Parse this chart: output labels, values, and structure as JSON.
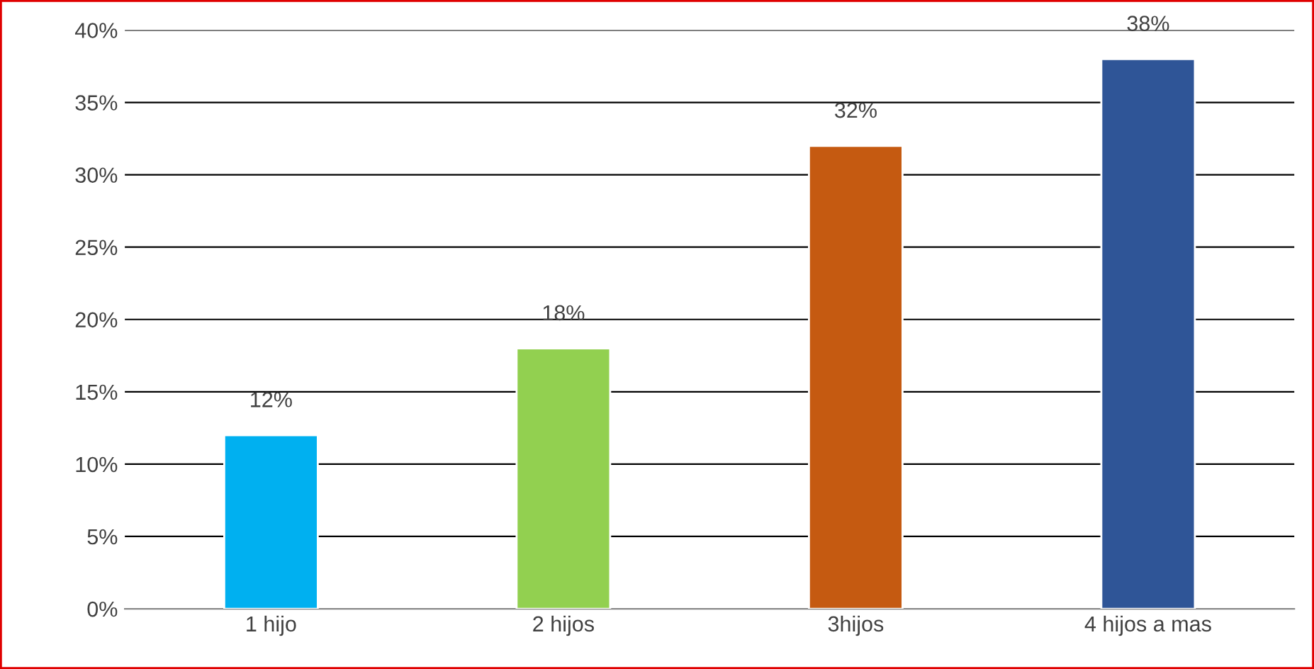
{
  "chart_data": {
    "type": "bar",
    "categories": [
      "1 hijo",
      "2 hijos",
      "3hijos",
      "4 hijos a mas"
    ],
    "values": [
      12,
      18,
      32,
      38
    ],
    "colors": [
      "#00b0f0",
      "#92d050",
      "#c55a11",
      "#2f5597"
    ],
    "value_labels": [
      "12%",
      "18%",
      "32%",
      "38%"
    ],
    "ylim": [
      0,
      40
    ],
    "yticks": [
      {
        "value": 0,
        "label": "0%"
      },
      {
        "value": 5,
        "label": "5%"
      },
      {
        "value": 10,
        "label": "10%"
      },
      {
        "value": 15,
        "label": "15%"
      },
      {
        "value": 20,
        "label": "20%"
      },
      {
        "value": 25,
        "label": "25%"
      },
      {
        "value": 30,
        "label": "30%"
      },
      {
        "value": 35,
        "label": "35%"
      },
      {
        "value": 40,
        "label": "40%"
      }
    ],
    "grid": "y",
    "legend": false
  }
}
